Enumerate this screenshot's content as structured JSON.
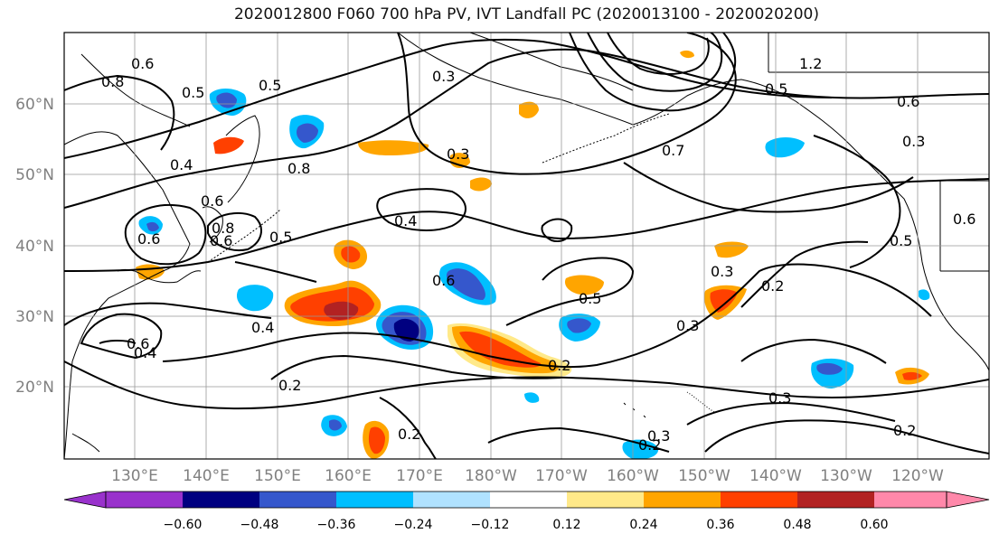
{
  "title": "2020012800 F060 700 hPa PV, IVT Landfall PC (2020013100 - 2020020200)",
  "lat_labels": [
    "60°N",
    "50°N",
    "40°N",
    "30°N",
    "20°N"
  ],
  "lon_labels": [
    "130°E",
    "140°E",
    "150°E",
    "160°E",
    "170°E",
    "180°W",
    "170°W",
    "160°W",
    "150°W",
    "140°W",
    "130°W",
    "120°W"
  ],
  "contour_labels": [
    "0.8",
    "0.6",
    "0.5",
    "0.5",
    "0.3",
    "0.4",
    "0.8",
    "0.6",
    "0.6",
    "0.6",
    "0.5",
    "0.4",
    "0.3",
    "0.4",
    "0.6",
    "0.5",
    "0.3",
    "0.2",
    "0.3",
    "0.2",
    "0.4",
    "0.6",
    "0.2",
    "0.2",
    "0.3",
    "0.3",
    "0.2",
    "0.2",
    "0.6",
    "0.5",
    "0.3",
    "0.6",
    "0.8",
    "0.5",
    "1.2",
    "0.7"
  ],
  "colorbar": {
    "colors": [
      "#9932cc",
      "#000080",
      "#3557cc",
      "#00bfff",
      "#b0e2ff",
      "#ffffff",
      "#ffe989",
      "#ffa500",
      "#ff4000",
      "#b22222",
      "#ff88aa"
    ],
    "tick_labels": [
      "−0.60",
      "−0.48",
      "−0.36",
      "−0.24",
      "−0.12",
      "0.12",
      "0.24",
      "0.36",
      "0.48",
      "0.60"
    ]
  },
  "colors": {
    "land_outline": "#000000",
    "grid": "#999999",
    "axis_label": "#808080",
    "contour": "#000000"
  }
}
